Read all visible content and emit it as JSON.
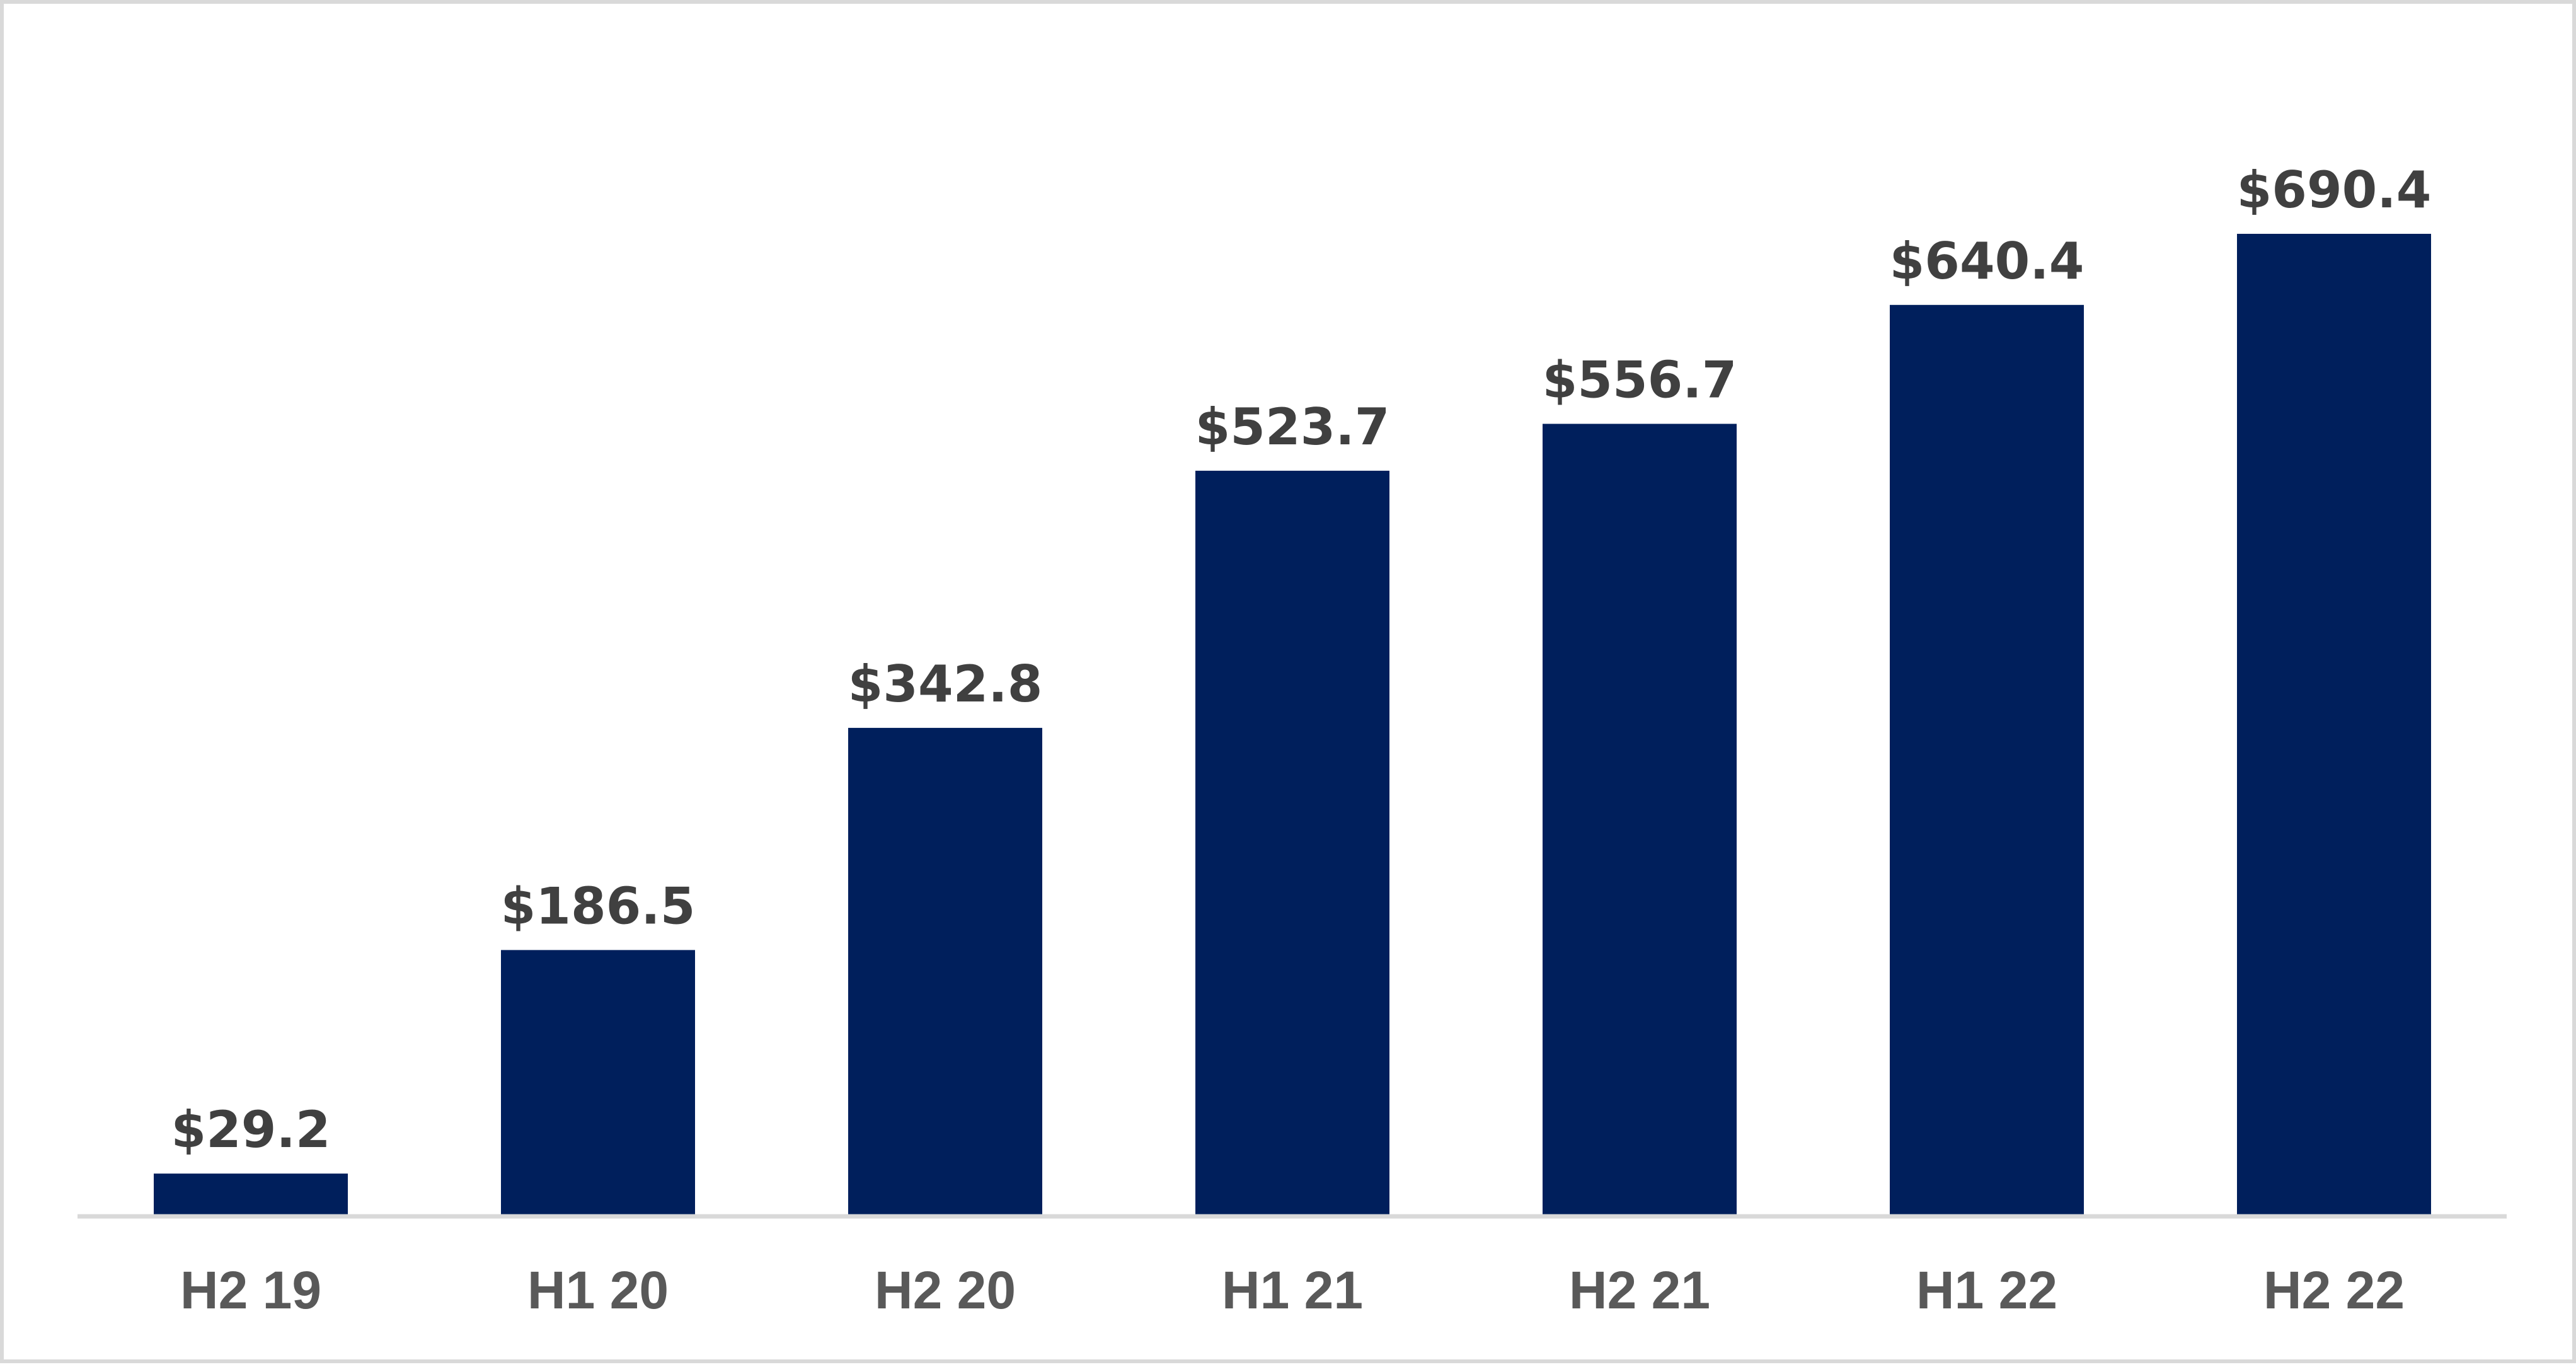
{
  "chart_data": {
    "type": "bar",
    "categories": [
      "H2 19",
      "H1 20",
      "H2 20",
      "H1 21",
      "H2 21",
      "H1 22",
      "H2 22"
    ],
    "values": [
      29.2,
      186.5,
      342.8,
      523.7,
      556.7,
      640.4,
      690.4
    ],
    "data_labels": [
      "$29.2",
      "$186.5",
      "$342.8",
      "$523.7",
      "$556.7",
      "$640.4",
      "$690.4"
    ],
    "title": "",
    "xlabel": "",
    "ylabel": "",
    "ylim": [
      0,
      800
    ],
    "grid": false,
    "legend": "none",
    "colors": {
      "bar": "#001f5c",
      "axis": "#d9d9d9",
      "data_label": "#404040",
      "tick_label": "#595959",
      "frame_border": "#d9d9d9"
    }
  }
}
